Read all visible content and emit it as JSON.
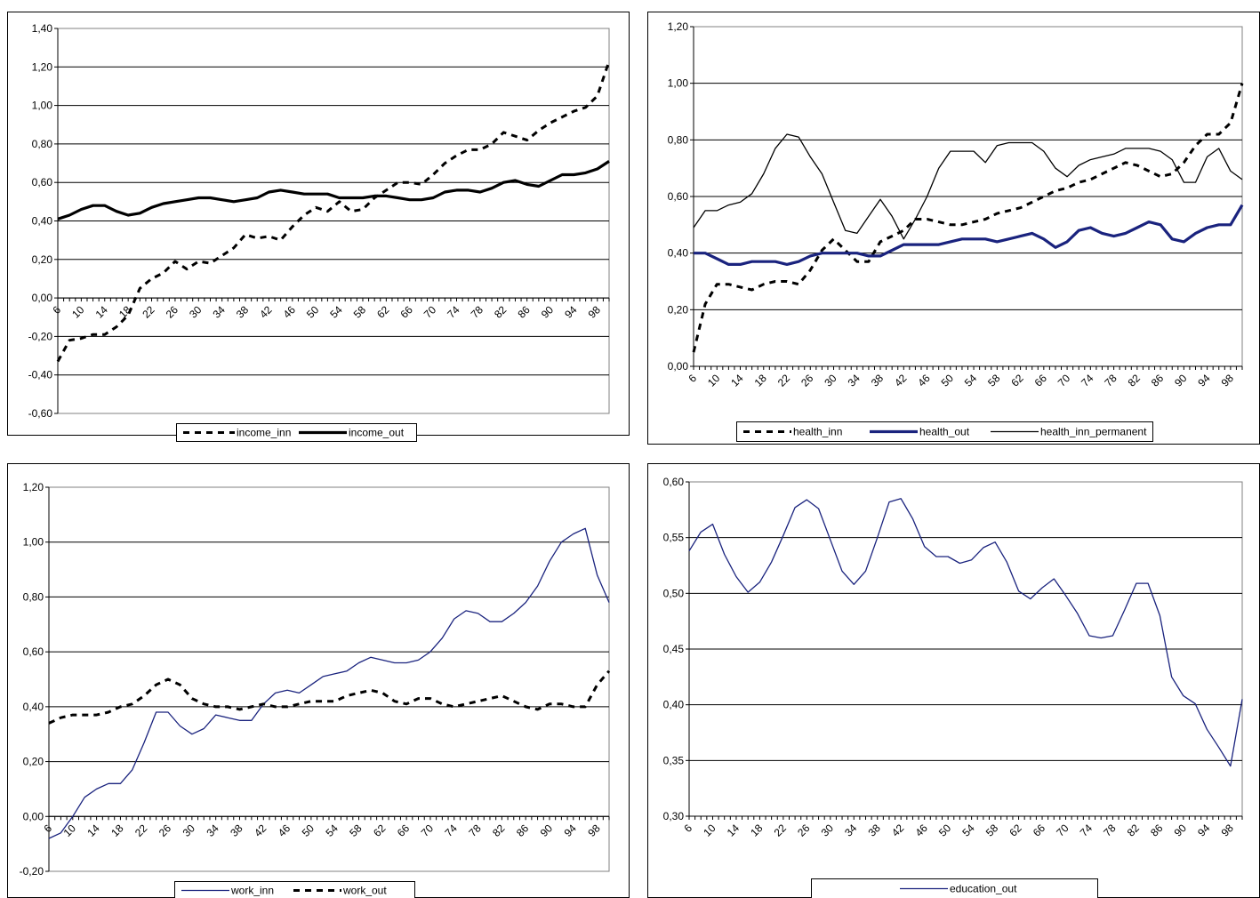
{
  "chart_data": [
    {
      "type": "line",
      "title": "",
      "xlabel": "",
      "ylabel": "",
      "x": [
        6,
        8,
        10,
        12,
        14,
        16,
        18,
        20,
        22,
        24,
        26,
        28,
        30,
        32,
        34,
        36,
        38,
        40,
        42,
        44,
        46,
        48,
        50,
        52,
        54,
        56,
        58,
        60,
        62,
        64,
        66,
        68,
        70,
        72,
        74,
        76,
        78,
        80,
        82,
        84,
        86,
        88,
        90,
        92,
        94,
        96,
        98,
        100
      ],
      "x_tick_labels": [
        "6",
        "10",
        "14",
        "18",
        "22",
        "26",
        "30",
        "34",
        "38",
        "42",
        "46",
        "50",
        "54",
        "58",
        "62",
        "66",
        "70",
        "74",
        "78",
        "82",
        "86",
        "90",
        "94",
        "98"
      ],
      "y_tick_labels": [
        "1,40",
        "1,20",
        "1,00",
        "0,80",
        "0,60",
        "0,40",
        "0,20",
        "0,00",
        "-0,20",
        "-0,40",
        "-0,60"
      ],
      "ylim": [
        -0.6,
        1.4
      ],
      "grid": true,
      "legend": "bottom",
      "series": [
        {
          "name": "income_inn",
          "style": "dashed",
          "color": "#000000",
          "values": [
            -0.33,
            -0.22,
            -0.21,
            -0.19,
            -0.19,
            -0.15,
            -0.09,
            0.05,
            0.1,
            0.13,
            0.19,
            0.15,
            0.19,
            0.18,
            0.22,
            0.26,
            0.33,
            0.31,
            0.32,
            0.3,
            0.37,
            0.43,
            0.47,
            0.45,
            0.5,
            0.45,
            0.46,
            0.52,
            0.56,
            0.6,
            0.6,
            0.59,
            0.64,
            0.7,
            0.74,
            0.77,
            0.77,
            0.8,
            0.86,
            0.84,
            0.82,
            0.87,
            0.91,
            0.94,
            0.97,
            0.99,
            1.05,
            1.23
          ]
        },
        {
          "name": "income_out",
          "style": "solid-thick",
          "color": "#000000",
          "values": [
            0.41,
            0.43,
            0.46,
            0.48,
            0.48,
            0.45,
            0.43,
            0.44,
            0.47,
            0.49,
            0.5,
            0.51,
            0.52,
            0.52,
            0.51,
            0.5,
            0.51,
            0.52,
            0.55,
            0.56,
            0.55,
            0.54,
            0.54,
            0.54,
            0.52,
            0.52,
            0.52,
            0.53,
            0.53,
            0.52,
            0.51,
            0.51,
            0.52,
            0.55,
            0.56,
            0.56,
            0.55,
            0.57,
            0.6,
            0.61,
            0.59,
            0.58,
            0.61,
            0.64,
            0.64,
            0.65,
            0.67,
            0.71
          ]
        }
      ]
    },
    {
      "type": "line",
      "title": "",
      "xlabel": "",
      "ylabel": "",
      "x": [
        6,
        8,
        10,
        12,
        14,
        16,
        18,
        20,
        22,
        24,
        26,
        28,
        30,
        32,
        34,
        36,
        38,
        40,
        42,
        44,
        46,
        48,
        50,
        52,
        54,
        56,
        58,
        60,
        62,
        64,
        66,
        68,
        70,
        72,
        74,
        76,
        78,
        80,
        82,
        84,
        86,
        88,
        90,
        92,
        94,
        96,
        98,
        100
      ],
      "x_tick_labels": [
        "6",
        "10",
        "14",
        "18",
        "22",
        "26",
        "30",
        "34",
        "38",
        "42",
        "46",
        "50",
        "54",
        "58",
        "62",
        "66",
        "70",
        "74",
        "78",
        "82",
        "86",
        "90",
        "94",
        "98"
      ],
      "y_tick_labels": [
        "1,20",
        "1,00",
        "0,80",
        "0,60",
        "0,40",
        "0,20",
        "0,00"
      ],
      "ylim": [
        0,
        1.2
      ],
      "grid": true,
      "legend": "bottom",
      "series": [
        {
          "name": "health_inn",
          "style": "dashed",
          "color": "#000000",
          "values": [
            0.05,
            0.22,
            0.29,
            0.29,
            0.28,
            0.27,
            0.29,
            0.3,
            0.3,
            0.29,
            0.34,
            0.41,
            0.45,
            0.41,
            0.37,
            0.37,
            0.44,
            0.46,
            0.48,
            0.52,
            0.52,
            0.51,
            0.5,
            0.5,
            0.51,
            0.52,
            0.54,
            0.55,
            0.56,
            0.58,
            0.6,
            0.62,
            0.63,
            0.65,
            0.66,
            0.68,
            0.7,
            0.72,
            0.71,
            0.69,
            0.67,
            0.68,
            0.72,
            0.78,
            0.82,
            0.82,
            0.86,
            1.0
          ]
        },
        {
          "name": "health_out",
          "style": "solid-thick",
          "color": "#1a237e",
          "values": [
            0.4,
            0.4,
            0.38,
            0.36,
            0.36,
            0.37,
            0.37,
            0.37,
            0.36,
            0.37,
            0.39,
            0.4,
            0.4,
            0.4,
            0.4,
            0.39,
            0.39,
            0.41,
            0.43,
            0.43,
            0.43,
            0.43,
            0.44,
            0.45,
            0.45,
            0.45,
            0.44,
            0.45,
            0.46,
            0.47,
            0.45,
            0.42,
            0.44,
            0.48,
            0.49,
            0.47,
            0.46,
            0.47,
            0.49,
            0.51,
            0.5,
            0.45,
            0.44,
            0.47,
            0.49,
            0.5,
            0.5,
            0.57
          ]
        },
        {
          "name": "health_inn_permanent",
          "style": "solid-thin",
          "color": "#000000",
          "values": [
            0.49,
            0.55,
            0.55,
            0.57,
            0.58,
            0.61,
            0.68,
            0.77,
            0.82,
            0.81,
            0.74,
            0.68,
            0.58,
            0.48,
            0.47,
            0.53,
            0.59,
            0.53,
            0.45,
            0.52,
            0.6,
            0.7,
            0.76,
            0.76,
            0.76,
            0.72,
            0.78,
            0.79,
            0.79,
            0.79,
            0.76,
            0.7,
            0.67,
            0.71,
            0.73,
            0.74,
            0.75,
            0.77,
            0.77,
            0.77,
            0.76,
            0.73,
            0.65,
            0.65,
            0.74,
            0.77,
            0.69,
            0.66
          ]
        }
      ]
    },
    {
      "type": "line",
      "title": "",
      "xlabel": "",
      "ylabel": "",
      "x": [
        6,
        8,
        10,
        12,
        14,
        16,
        18,
        20,
        22,
        24,
        26,
        28,
        30,
        32,
        34,
        36,
        38,
        40,
        42,
        44,
        46,
        48,
        50,
        52,
        54,
        56,
        58,
        60,
        62,
        64,
        66,
        68,
        70,
        72,
        74,
        76,
        78,
        80,
        82,
        84,
        86,
        88,
        90,
        92,
        94,
        96,
        98,
        100
      ],
      "x_tick_labels": [
        "6",
        "10",
        "14",
        "18",
        "22",
        "26",
        "30",
        "34",
        "38",
        "42",
        "46",
        "50",
        "54",
        "58",
        "62",
        "66",
        "70",
        "74",
        "78",
        "82",
        "86",
        "90",
        "94",
        "98"
      ],
      "y_tick_labels": [
        "1,20",
        "1,00",
        "0,80",
        "0,60",
        "0,40",
        "0,20",
        "0,00",
        "-0,20"
      ],
      "ylim": [
        -0.2,
        1.2
      ],
      "grid": true,
      "legend": "bottom",
      "series": [
        {
          "name": "work_inn",
          "style": "solid-thin",
          "color": "#1a237e",
          "values": [
            -0.08,
            -0.06,
            0.0,
            0.07,
            0.1,
            0.12,
            0.12,
            0.17,
            0.27,
            0.38,
            0.38,
            0.33,
            0.3,
            0.32,
            0.37,
            0.36,
            0.35,
            0.35,
            0.41,
            0.45,
            0.46,
            0.45,
            0.48,
            0.51,
            0.52,
            0.53,
            0.56,
            0.58,
            0.57,
            0.56,
            0.56,
            0.57,
            0.6,
            0.65,
            0.72,
            0.75,
            0.74,
            0.71,
            0.71,
            0.74,
            0.78,
            0.84,
            0.93,
            1.0,
            1.03,
            1.05,
            0.88,
            0.78
          ]
        },
        {
          "name": "work_out",
          "style": "dashed",
          "color": "#000000",
          "values": [
            0.34,
            0.36,
            0.37,
            0.37,
            0.37,
            0.38,
            0.4,
            0.41,
            0.44,
            0.48,
            0.5,
            0.48,
            0.43,
            0.41,
            0.4,
            0.4,
            0.39,
            0.4,
            0.41,
            0.4,
            0.4,
            0.41,
            0.42,
            0.42,
            0.42,
            0.44,
            0.45,
            0.46,
            0.45,
            0.42,
            0.41,
            0.43,
            0.43,
            0.41,
            0.4,
            0.41,
            0.42,
            0.43,
            0.44,
            0.42,
            0.4,
            0.39,
            0.41,
            0.41,
            0.4,
            0.4,
            0.48,
            0.53
          ]
        }
      ]
    },
    {
      "type": "line",
      "title": "",
      "xlabel": "",
      "ylabel": "",
      "x": [
        6,
        8,
        10,
        12,
        14,
        16,
        18,
        20,
        22,
        24,
        26,
        28,
        30,
        32,
        34,
        36,
        38,
        40,
        42,
        44,
        46,
        48,
        50,
        52,
        54,
        56,
        58,
        60,
        62,
        64,
        66,
        68,
        70,
        72,
        74,
        76,
        78,
        80,
        82,
        84,
        86,
        88,
        90,
        92,
        94,
        96,
        98,
        100
      ],
      "x_tick_labels": [
        "6",
        "10",
        "14",
        "18",
        "22",
        "26",
        "30",
        "34",
        "38",
        "42",
        "46",
        "50",
        "54",
        "58",
        "62",
        "66",
        "70",
        "74",
        "78",
        "82",
        "86",
        "90",
        "94",
        "98"
      ],
      "y_tick_labels": [
        "0,60",
        "0,55",
        "0,50",
        "0,45",
        "0,40",
        "0,35",
        "0,30"
      ],
      "ylim": [
        0.3,
        0.6
      ],
      "grid": true,
      "legend": "bottom",
      "series": [
        {
          "name": "education_out",
          "style": "solid-thin",
          "color": "#1a237e",
          "values": [
            0.538,
            0.555,
            0.562,
            0.535,
            0.515,
            0.501,
            0.51,
            0.528,
            0.552,
            0.577,
            0.584,
            0.576,
            0.548,
            0.52,
            0.508,
            0.52,
            0.55,
            0.582,
            0.585,
            0.567,
            0.542,
            0.533,
            0.533,
            0.527,
            0.53,
            0.541,
            0.546,
            0.528,
            0.502,
            0.495,
            0.505,
            0.513,
            0.498,
            0.482,
            0.462,
            0.46,
            0.462,
            0.485,
            0.509,
            0.509,
            0.48,
            0.425,
            0.408,
            0.401,
            0.378,
            0.362,
            0.345,
            0.405
          ]
        }
      ]
    }
  ]
}
